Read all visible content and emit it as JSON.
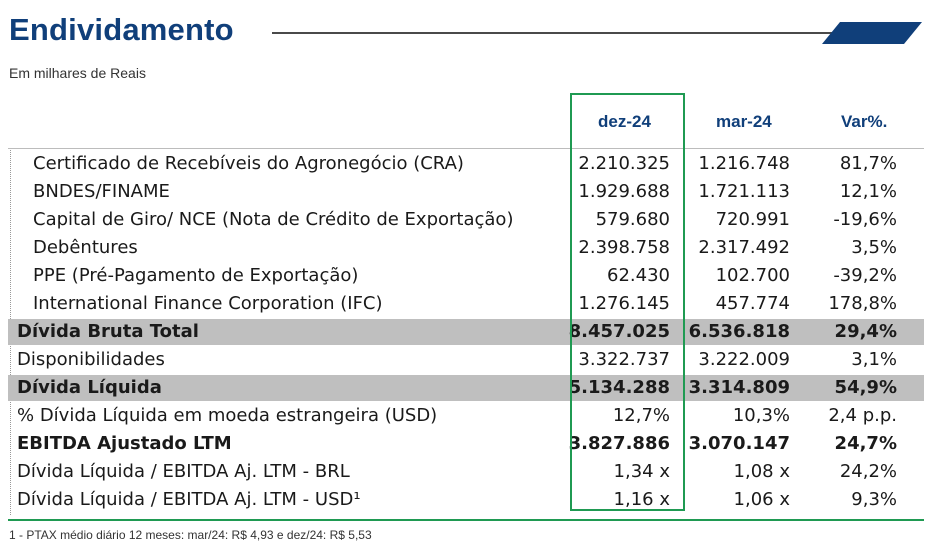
{
  "title": "Endividamento",
  "subtitle": "Em milhares de Reais",
  "headers": {
    "col1": "dez-24",
    "col2": "mar-24",
    "col3": "Var%."
  },
  "rows": [
    {
      "label": "Certificado de Recebíveis do Agronegócio (CRA)",
      "v1": "2.210.325",
      "v2": "1.216.748",
      "v3": "81,7%",
      "indent": true,
      "bold": false,
      "band": false
    },
    {
      "label": "BNDES/FINAME",
      "v1": "1.929.688",
      "v2": "1.721.113",
      "v3": "12,1%",
      "indent": true,
      "bold": false,
      "band": false
    },
    {
      "label": "Capital de Giro/ NCE (Nota de Crédito de Exportação)",
      "v1": "579.680",
      "v2": "720.991",
      "v3": "-19,6%",
      "indent": true,
      "bold": false,
      "band": false
    },
    {
      "label": "Debêntures",
      "v1": "2.398.758",
      "v2": "2.317.492",
      "v3": "3,5%",
      "indent": true,
      "bold": false,
      "band": false
    },
    {
      "label": "PPE (Pré-Pagamento de Exportação)",
      "v1": "62.430",
      "v2": "102.700",
      "v3": "-39,2%",
      "indent": true,
      "bold": false,
      "band": false
    },
    {
      "label": "International Finance Corporation (IFC)",
      "v1": "1.276.145",
      "v2": "457.774",
      "v3": "178,8%",
      "indent": true,
      "bold": false,
      "band": false
    },
    {
      "label": "Dívida Bruta Total",
      "v1": "8.457.025",
      "v2": "6.536.818",
      "v3": "29,4%",
      "indent": false,
      "bold": true,
      "band": true
    },
    {
      "label": "Disponibilidades",
      "v1": "3.322.737",
      "v2": "3.222.009",
      "v3": "3,1%",
      "indent": false,
      "bold": false,
      "band": false
    },
    {
      "label": "Dívida Líquida",
      "v1": "5.134.288",
      "v2": "3.314.809",
      "v3": "54,9%",
      "indent": false,
      "bold": true,
      "band": true
    },
    {
      "label": "% Dívida Líquida em moeda estrangeira (USD)",
      "v1": "12,7%",
      "v2": "10,3%",
      "v3": "2,4 p.p.",
      "indent": false,
      "bold": false,
      "band": false
    },
    {
      "label": "EBITDA Ajustado LTM",
      "v1": "3.827.886",
      "v2": "3.070.147",
      "v3": "24,7%",
      "indent": false,
      "bold": true,
      "band": false
    },
    {
      "label": "Dívida Líquida / EBITDA Aj. LTM - BRL",
      "v1": "1,34 x",
      "v2": "1,08 x",
      "v3": "24,2%",
      "indent": false,
      "bold": false,
      "band": false
    },
    {
      "label": "Dívida Líquida / EBITDA Aj. LTM - USD¹",
      "v1": "1,16 x",
      "v2": "1,06 x",
      "v3": "9,3%",
      "indent": false,
      "bold": false,
      "band": false
    }
  ],
  "footnote": "1 - PTAX médio diário 12 meses: mar/24: R$ 4,93 e dez/24: R$ 5,53",
  "colors": {
    "title": "#103f7a",
    "highlight": "#1f9a52",
    "band": "#bfbfbf"
  }
}
